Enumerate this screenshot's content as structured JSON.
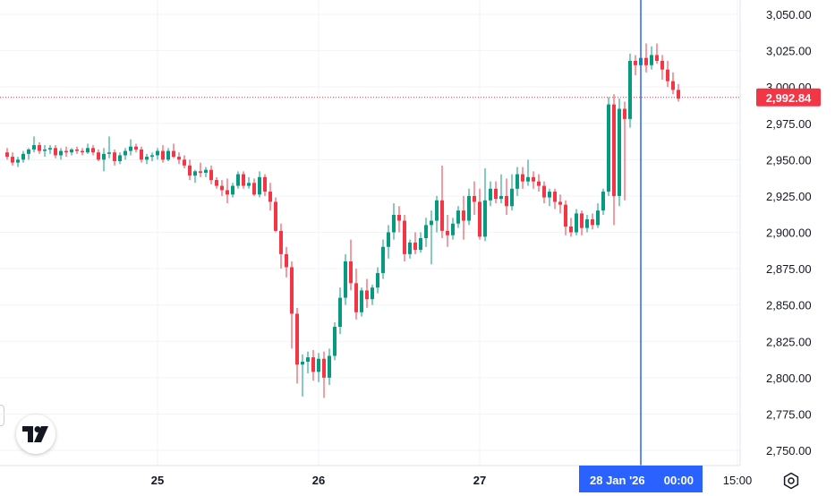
{
  "chart_data": {
    "type": "candlestick",
    "ylim": [
      2740,
      3060
    ],
    "y_ticks": [
      2750,
      2775,
      2800,
      2825,
      2850,
      2875,
      2900,
      2925,
      2950,
      2975,
      3000,
      3025,
      3050
    ],
    "y_tick_labels": [
      "2,750.00",
      "2,775.00",
      "2,800.00",
      "2,825.00",
      "2,850.00",
      "2,875.00",
      "2,900.00",
      "2,925.00",
      "2,950.00",
      "2,975.00",
      "3,000.00",
      "3,025.00",
      "3,050.00"
    ],
    "x_tick_labels": [
      "25",
      "26",
      "27",
      "15:00"
    ],
    "x_tick_candle_index": [
      28,
      58,
      88,
      136
    ],
    "crosshair": {
      "candle_index": 118,
      "label_date": "28 Jan '26",
      "label_time": "00:00",
      "color": "#2962ff"
    },
    "last_price": {
      "value": 2992.84,
      "label": "2,992.84",
      "color": "#f23645"
    },
    "colors": {
      "up": "#089981",
      "down": "#f23645",
      "grid": "#f0f3fa",
      "axis_text": "#131722"
    },
    "grid": true,
    "candles": [
      [
        2955,
        2958,
        2950,
        2952
      ],
      [
        2952,
        2955,
        2946,
        2948
      ],
      [
        2948,
        2952,
        2945,
        2950
      ],
      [
        2950,
        2956,
        2948,
        2954
      ],
      [
        2954,
        2958,
        2950,
        2957
      ],
      [
        2957,
        2966,
        2955,
        2960
      ],
      [
        2960,
        2962,
        2954,
        2956
      ],
      [
        2956,
        2960,
        2952,
        2957
      ],
      [
        2957,
        2960,
        2954,
        2958
      ],
      [
        2958,
        2960,
        2951,
        2953
      ],
      [
        2953,
        2958,
        2950,
        2956
      ],
      [
        2956,
        2959,
        2952,
        2955
      ],
      [
        2955,
        2958,
        2953,
        2957
      ],
      [
        2957,
        2959,
        2954,
        2956
      ],
      [
        2956,
        2958,
        2953,
        2955
      ],
      [
        2955,
        2961,
        2954,
        2958
      ],
      [
        2958,
        2960,
        2953,
        2955
      ],
      [
        2955,
        2957,
        2949,
        2950
      ],
      [
        2950,
        2958,
        2942,
        2954
      ],
      [
        2954,
        2966,
        2951,
        2955
      ],
      [
        2955,
        2957,
        2946,
        2949
      ],
      [
        2949,
        2955,
        2947,
        2953
      ],
      [
        2953,
        2958,
        2950,
        2956
      ],
      [
        2956,
        2964,
        2953,
        2959
      ],
      [
        2959,
        2961,
        2955,
        2957
      ],
      [
        2957,
        2959,
        2948,
        2950
      ],
      [
        2950,
        2954,
        2947,
        2952
      ],
      [
        2952,
        2955,
        2949,
        2953
      ],
      [
        2953,
        2958,
        2950,
        2956
      ],
      [
        2956,
        2960,
        2948,
        2950
      ],
      [
        2950,
        2958,
        2949,
        2956
      ],
      [
        2956,
        2961,
        2951,
        2952
      ],
      [
        2952,
        2955,
        2947,
        2950
      ],
      [
        2950,
        2953,
        2944,
        2946
      ],
      [
        2946,
        2950,
        2936,
        2939
      ],
      [
        2939,
        2943,
        2934,
        2942
      ],
      [
        2942,
        2948,
        2938,
        2941
      ],
      [
        2941,
        2945,
        2938,
        2943
      ],
      [
        2943,
        2946,
        2933,
        2936
      ],
      [
        2936,
        2938,
        2930,
        2932
      ],
      [
        2932,
        2936,
        2925,
        2929
      ],
      [
        2929,
        2937,
        2920,
        2926
      ],
      [
        2926,
        2934,
        2924,
        2932
      ],
      [
        2932,
        2942,
        2930,
        2940
      ],
      [
        2940,
        2942,
        2930,
        2932
      ],
      [
        2932,
        2938,
        2930,
        2934
      ],
      [
        2934,
        2937,
        2925,
        2926
      ],
      [
        2926,
        2942,
        2924,
        2938
      ],
      [
        2938,
        2940,
        2925,
        2928
      ],
      [
        2928,
        2934,
        2915,
        2921
      ],
      [
        2921,
        2924,
        2900,
        2901
      ],
      [
        2901,
        2906,
        2875,
        2885
      ],
      [
        2885,
        2890,
        2869,
        2876
      ],
      [
        2876,
        2880,
        2820,
        2844
      ],
      [
        2844,
        2848,
        2796,
        2809
      ],
      [
        2809,
        2816,
        2787,
        2811
      ],
      [
        2811,
        2818,
        2803,
        2814
      ],
      [
        2814,
        2819,
        2798,
        2804
      ],
      [
        2804,
        2817,
        2797,
        2813
      ],
      [
        2813,
        2818,
        2786,
        2800
      ],
      [
        2800,
        2820,
        2795,
        2815
      ],
      [
        2815,
        2838,
        2812,
        2835
      ],
      [
        2835,
        2862,
        2830,
        2855
      ],
      [
        2855,
        2885,
        2850,
        2880
      ],
      [
        2880,
        2895,
        2860,
        2865
      ],
      [
        2865,
        2875,
        2840,
        2845
      ],
      [
        2845,
        2862,
        2842,
        2860
      ],
      [
        2860,
        2868,
        2848,
        2854
      ],
      [
        2854,
        2864,
        2850,
        2862
      ],
      [
        2862,
        2876,
        2858,
        2872
      ],
      [
        2872,
        2895,
        2868,
        2890
      ],
      [
        2890,
        2905,
        2882,
        2900
      ],
      [
        2900,
        2920,
        2895,
        2912
      ],
      [
        2912,
        2918,
        2900,
        2908
      ],
      [
        2908,
        2912,
        2880,
        2885
      ],
      [
        2885,
        2895,
        2882,
        2893
      ],
      [
        2893,
        2900,
        2885,
        2888
      ],
      [
        2888,
        2900,
        2886,
        2896
      ],
      [
        2896,
        2910,
        2890,
        2905
      ],
      [
        2905,
        2915,
        2878,
        2908
      ],
      [
        2908,
        2925,
        2900,
        2922
      ],
      [
        2922,
        2946,
        2896,
        2901
      ],
      [
        2901,
        2912,
        2890,
        2898
      ],
      [
        2898,
        2910,
        2895,
        2906
      ],
      [
        2906,
        2918,
        2903,
        2915
      ],
      [
        2915,
        2925,
        2895,
        2908
      ],
      [
        2908,
        2930,
        2905,
        2925
      ],
      [
        2925,
        2935,
        2912,
        2921
      ],
      [
        2921,
        2930,
        2895,
        2897
      ],
      [
        2897,
        2944,
        2894,
        2922
      ],
      [
        2922,
        2935,
        2918,
        2930
      ],
      [
        2930,
        2935,
        2920,
        2923
      ],
      [
        2923,
        2940,
        2920,
        2925
      ],
      [
        2925,
        2937,
        2912,
        2918
      ],
      [
        2918,
        2940,
        2915,
        2930
      ],
      [
        2930,
        2945,
        2925,
        2940
      ],
      [
        2940,
        2945,
        2930,
        2935
      ],
      [
        2935,
        2950,
        2932,
        2938
      ],
      [
        2938,
        2942,
        2930,
        2935
      ],
      [
        2935,
        2940,
        2928,
        2932
      ],
      [
        2932,
        2935,
        2920,
        2924
      ],
      [
        2924,
        2930,
        2918,
        2928
      ],
      [
        2928,
        2930,
        2916,
        2921
      ],
      [
        2921,
        2926,
        2913,
        2919
      ],
      [
        2919,
        2922,
        2898,
        2904
      ],
      [
        2904,
        2910,
        2897,
        2900
      ],
      [
        2900,
        2916,
        2898,
        2913
      ],
      [
        2913,
        2915,
        2898,
        2903
      ],
      [
        2903,
        2912,
        2900,
        2909
      ],
      [
        2909,
        2913,
        2902,
        2905
      ],
      [
        2905,
        2920,
        2903,
        2915
      ],
      [
        2915,
        2930,
        2912,
        2928
      ],
      [
        2928,
        2993,
        2925,
        2988
      ],
      [
        2988,
        2995,
        2905,
        2925
      ],
      [
        2925,
        2992,
        2918,
        2985
      ],
      [
        2985,
        2990,
        2922,
        2978
      ],
      [
        2978,
        3023,
        2972,
        3018
      ],
      [
        3018,
        3022,
        3008,
        3015
      ],
      [
        3015,
        3024,
        3000,
        3020
      ],
      [
        3020,
        3030,
        3010,
        3015
      ],
      [
        3015,
        3028,
        3012,
        3022
      ],
      [
        3022,
        3030,
        3016,
        3018
      ],
      [
        3018,
        3022,
        3005,
        3012
      ],
      [
        3012,
        3018,
        3000,
        3004
      ],
      [
        3004,
        3010,
        2995,
        2998
      ],
      [
        2998,
        3002,
        2990,
        2992
      ]
    ]
  },
  "icons": {
    "logo": "tradingview-logo-icon",
    "settings": "gear-icon"
  }
}
